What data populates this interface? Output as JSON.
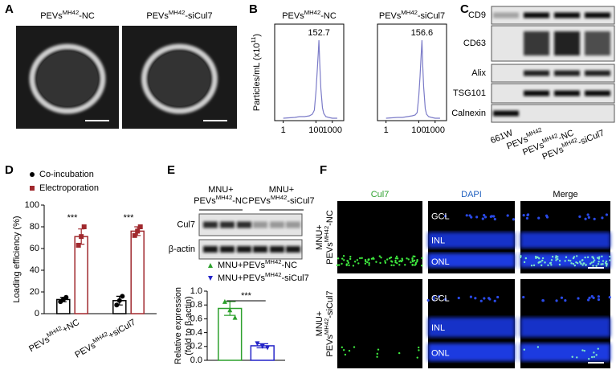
{
  "panel_labels": [
    "A",
    "B",
    "C",
    "D",
    "E",
    "F"
  ],
  "panel_a": {
    "titles": [
      {
        "text": "PEVs",
        "sup": "MH42",
        "suffix": "-NC"
      },
      {
        "text": "PEVs",
        "sup": "MH42",
        "suffix": "-siCul7"
      }
    ]
  },
  "panel_c": {
    "bands": [
      "CD9",
      "CD63",
      "Alix",
      "TSG101",
      "Calnexin"
    ],
    "lanes": [
      {
        "text": "661W"
      },
      {
        "text": "PEVs",
        "sup": "MH42"
      },
      {
        "text": "PEVs",
        "sup": "MH42",
        "suffix": "-NC"
      },
      {
        "text": "PEVs",
        "sup": "MH42",
        "suffix": "-siCul7"
      }
    ]
  },
  "panel_e_blot": {
    "groups": [
      {
        "line1": "MNU+",
        "line2": {
          "text": "PEVs",
          "sup": "MH42",
          "suffix": "-NC"
        }
      },
      {
        "line1": "MNU+",
        "line2": {
          "text": "PEVs",
          "sup": "MH42",
          "suffix": "-siCul7"
        }
      }
    ],
    "bands": [
      "Cul7",
      "β-actin"
    ]
  },
  "panel_f": {
    "columns": [
      "Cul7",
      "DAPI",
      "Merge"
    ],
    "rows": [
      {
        "line1": "MNU+",
        "line2": {
          "text": "PEVs",
          "sup": "MH42",
          "suffix": "-NC"
        }
      },
      {
        "line1": "MNU+",
        "line2": {
          "text": "PEVs",
          "sup": "MH42",
          "suffix": "-siCul7"
        }
      }
    ],
    "layers": [
      "GCL",
      "INL",
      "ONL"
    ]
  },
  "chart_data": [
    {
      "type": "line",
      "title": {
        "text": "PEVs",
        "sup": "MH42",
        "suffix": "-NC"
      },
      "ylabel": {
        "text": "Particles/mL (x10",
        "sup": "11",
        "suffix": ")"
      },
      "x": [
        1,
        5,
        10,
        20,
        40,
        60,
        80,
        100,
        120,
        140,
        152.7,
        170,
        200,
        250,
        300,
        400,
        600,
        1000,
        2000
      ],
      "values": [
        0.03,
        0.04,
        0.05,
        0.05,
        0.06,
        0.08,
        0.13,
        0.36,
        0.62,
        0.86,
        1.0,
        0.72,
        0.4,
        0.16,
        0.09,
        0.05,
        0.04,
        0.03,
        0.03
      ],
      "xlim": [
        0.3,
        5000
      ],
      "ylim": [
        0,
        1.2
      ],
      "xticks": [
        1,
        100,
        1000
      ],
      "log_x": true,
      "annotation": "152.7",
      "color": "#7b7bc8"
    },
    {
      "type": "line",
      "title": {
        "text": "PEVs",
        "sup": "MH42",
        "suffix": "-siCul7"
      },
      "x": [
        1,
        5,
        10,
        20,
        40,
        60,
        80,
        100,
        120,
        140,
        156.6,
        175,
        200,
        250,
        300,
        400,
        600,
        1000,
        2000
      ],
      "values": [
        0.03,
        0.04,
        0.04,
        0.05,
        0.06,
        0.07,
        0.1,
        0.3,
        0.55,
        0.82,
        1.0,
        0.7,
        0.42,
        0.15,
        0.08,
        0.05,
        0.04,
        0.03,
        0.03
      ],
      "xlim": [
        0.3,
        5000
      ],
      "ylim": [
        0,
        1.2
      ],
      "xticks": [
        1,
        100,
        1000
      ],
      "log_x": true,
      "annotation": "156.6",
      "color": "#7b7bc8"
    },
    {
      "type": "bar",
      "ylabel": "Loading efficiency (%)",
      "categories": [
        {
          "text": "PEVs",
          "sup": "MH42",
          "suffix": "+NC"
        },
        {
          "text": "PEVs",
          "sup": "MH42",
          "suffix": "+siCul7"
        }
      ],
      "series": [
        {
          "name": "Co-incubation",
          "color": "#000000",
          "marker": "circle",
          "values": [
            13,
            12
          ],
          "errors": [
            2,
            4
          ],
          "points": [
            [
              11,
              13,
              15
            ],
            [
              8,
              12,
              16
            ]
          ]
        },
        {
          "name": "Electroporation",
          "color": "#a0282d",
          "marker": "square",
          "values": [
            71,
            76
          ],
          "errors": [
            7,
            4
          ],
          "points": [
            [
              63,
              71,
              80
            ],
            [
              72,
              76,
              80
            ]
          ]
        }
      ],
      "ylim": [
        0,
        100
      ],
      "yticks": [
        0,
        20,
        40,
        60,
        80,
        100
      ],
      "annotations": [
        "***",
        "***"
      ]
    },
    {
      "type": "bar",
      "ylabel": [
        "Relative expression",
        "(fold to β-actin)"
      ],
      "series": [
        {
          "name": {
            "text": "MNU+PEVs",
            "sup": "MH42",
            "suffix": "-NC"
          },
          "color": "#2ca02c",
          "marker": "triangle",
          "values": [
            0.75
          ],
          "errors": [
            0.1
          ],
          "points": [
            [
              0.85,
              0.73,
              0.62
            ]
          ]
        },
        {
          "name": {
            "text": "MNU+PEVs",
            "sup": "MH42",
            "suffix": "-siCul7"
          },
          "color": "#2424c8",
          "marker": "triangle-down",
          "values": [
            0.21
          ],
          "errors": [
            0.03
          ],
          "points": [
            [
              0.24,
              0.2,
              0.18
            ]
          ]
        }
      ],
      "ylim": [
        0,
        1.0
      ],
      "yticks": [
        {
          "value": 0,
          "label": "0.0"
        },
        0.2,
        0.4,
        0.6,
        0.8,
        {
          "value": 1.0,
          "label": "1.0"
        }
      ],
      "annotations": [
        "***"
      ]
    }
  ]
}
